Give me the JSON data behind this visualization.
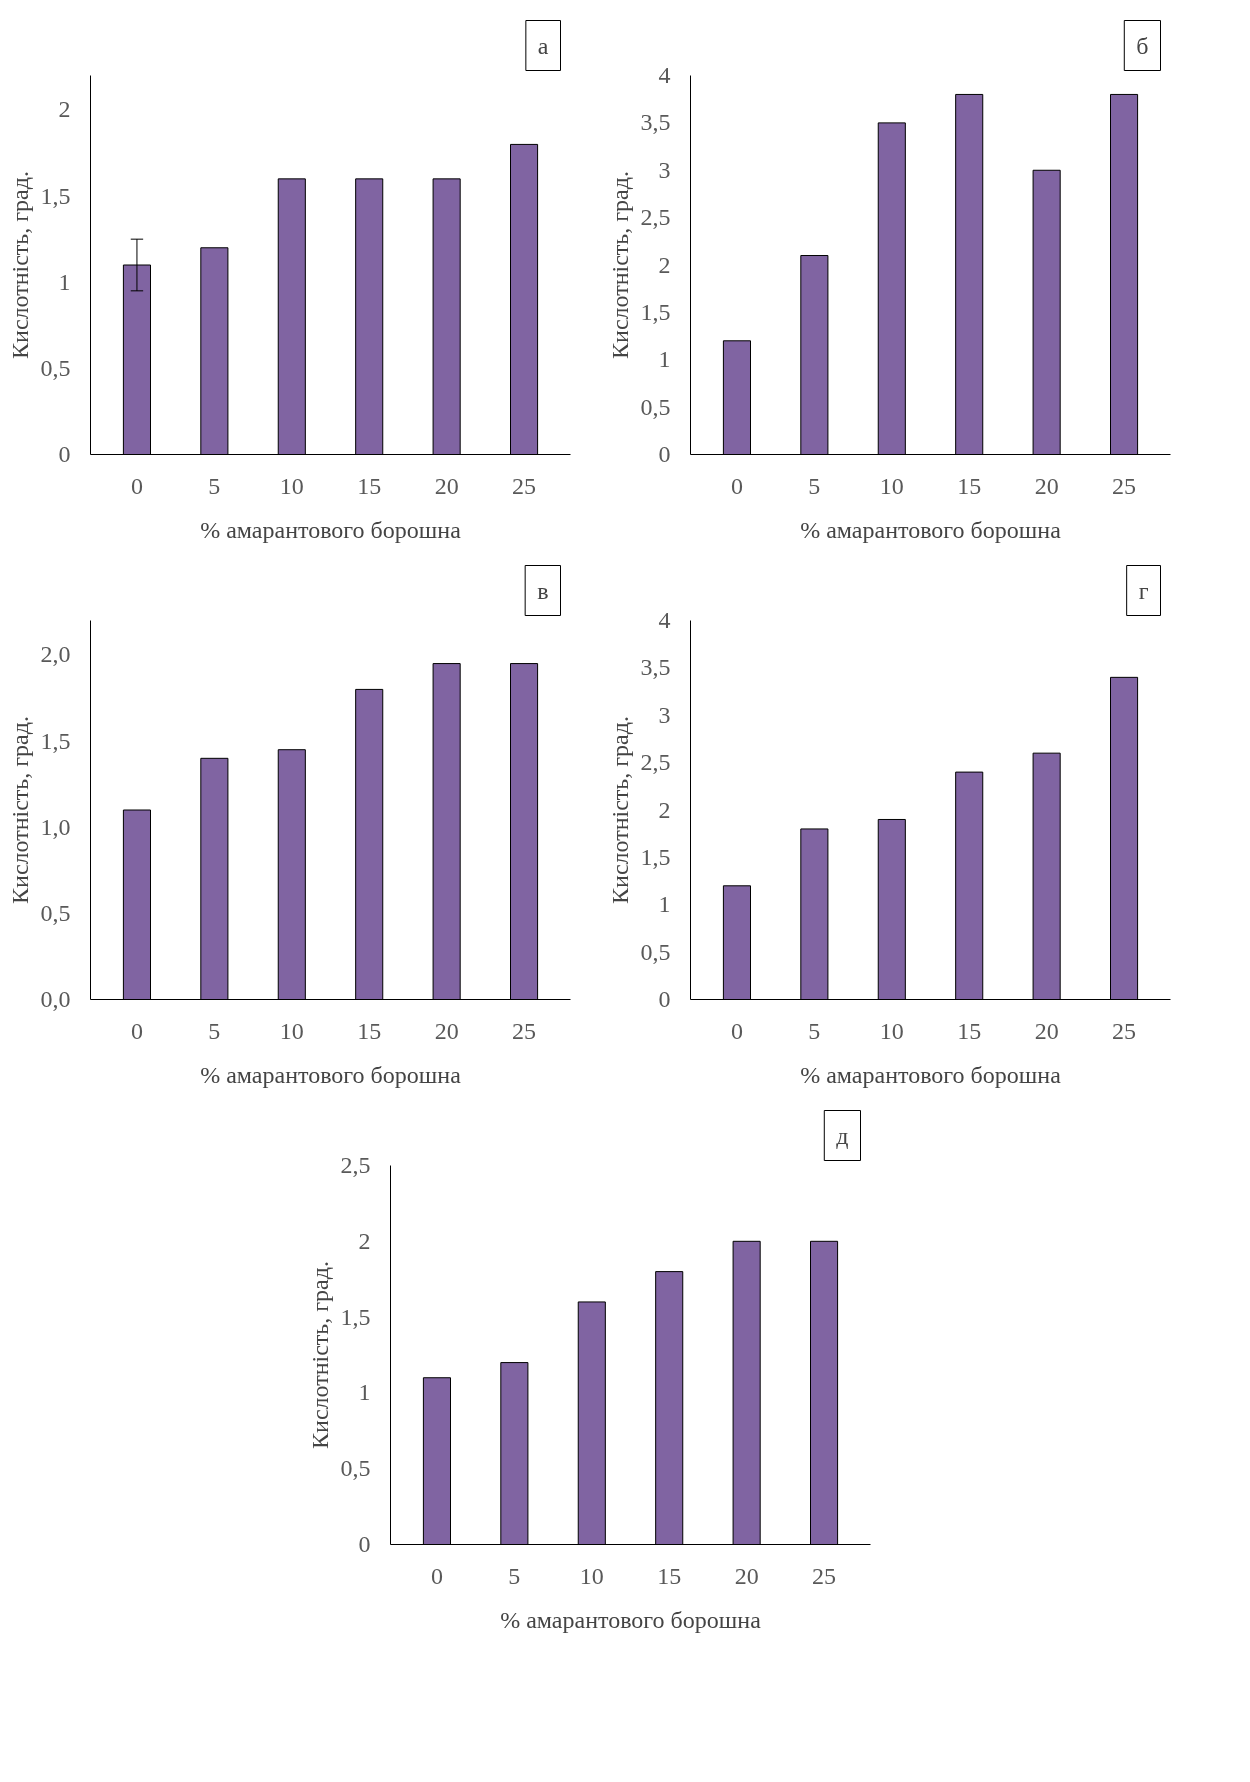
{
  "chart_data": [
    {
      "type": "bar",
      "annotations": [
        "а"
      ],
      "xlabel": "% амарантового борошна",
      "ylabel": "Кислотність, град.",
      "categories": [
        "0",
        "5",
        "10",
        "15",
        "20",
        "25"
      ],
      "values": [
        1.1,
        1.2,
        1.6,
        1.6,
        1.6,
        1.8
      ],
      "errors": [
        0.15,
        null,
        null,
        null,
        null,
        null
      ],
      "color": "#8064a2",
      "ylim": [
        0,
        2.2
      ],
      "yticks": [
        0,
        {
          "value": 0.5,
          "label": "0,5"
        },
        1,
        {
          "value": 1.5,
          "label": "1,5"
        },
        2
      ],
      "grid": false
    },
    {
      "type": "bar",
      "annotations": [
        "б"
      ],
      "xlabel": "% амарантового борошна",
      "ylabel": "Кислотність, град.",
      "categories": [
        "0",
        "5",
        "10",
        "15",
        "20",
        "25"
      ],
      "values": [
        1.2,
        2.1,
        3.5,
        3.8,
        3.0,
        3.8
      ],
      "color": "#8064a2",
      "ylim": [
        0,
        4
      ],
      "yticks": [
        0,
        {
          "value": 0.5,
          "label": "0,5"
        },
        1,
        {
          "value": 1.5,
          "label": "1,5"
        },
        2,
        {
          "value": 2.5,
          "label": "2,5"
        },
        3,
        {
          "value": 3.5,
          "label": "3,5"
        },
        4
      ],
      "grid": false
    },
    {
      "type": "bar",
      "annotations": [
        "в"
      ],
      "xlabel": "% амарантового борошна",
      "ylabel": "Кислотність, град.",
      "categories": [
        "0",
        "5",
        "10",
        "15",
        "20",
        "25"
      ],
      "values": [
        1.1,
        1.4,
        1.45,
        1.8,
        1.95,
        1.95
      ],
      "color": "#8064a2",
      "ylim": [
        0,
        2.2
      ],
      "yticks": [
        {
          "value": 0,
          "label": "0,0"
        },
        {
          "value": 0.5,
          "label": "0,5"
        },
        {
          "value": 1,
          "label": "1,0"
        },
        {
          "value": 1.5,
          "label": "1,5"
        },
        {
          "value": 2,
          "label": "2,0"
        }
      ],
      "grid": false
    },
    {
      "type": "bar",
      "annotations": [
        "г"
      ],
      "xlabel": "% амарантового борошна",
      "ylabel": "Кислотність, град.",
      "categories": [
        "0",
        "5",
        "10",
        "15",
        "20",
        "25"
      ],
      "values": [
        1.2,
        1.8,
        1.9,
        2.4,
        2.6,
        3.4
      ],
      "color": "#8064a2",
      "ylim": [
        0,
        4
      ],
      "yticks": [
        0,
        {
          "value": 0.5,
          "label": "0,5"
        },
        1,
        {
          "value": 1.5,
          "label": "1,5"
        },
        2,
        {
          "value": 2.5,
          "label": "2,5"
        },
        3,
        {
          "value": 3.5,
          "label": "3,5"
        },
        4
      ],
      "grid": false
    },
    {
      "type": "bar",
      "annotations": [
        "д"
      ],
      "xlabel": "% амарантового борошна",
      "ylabel": "Кислотність, град.",
      "categories": [
        "0",
        "5",
        "10",
        "15",
        "20",
        "25"
      ],
      "values": [
        1.1,
        1.2,
        1.6,
        1.8,
        2.0,
        2.0
      ],
      "color": "#8064a2",
      "ylim": [
        0,
        2.5
      ],
      "yticks": [
        0,
        {
          "value": 0.5,
          "label": "0,5"
        },
        1,
        {
          "value": 1.5,
          "label": "1,5"
        },
        2,
        {
          "value": 2.5,
          "label": "2,5"
        }
      ],
      "grid": false
    }
  ]
}
